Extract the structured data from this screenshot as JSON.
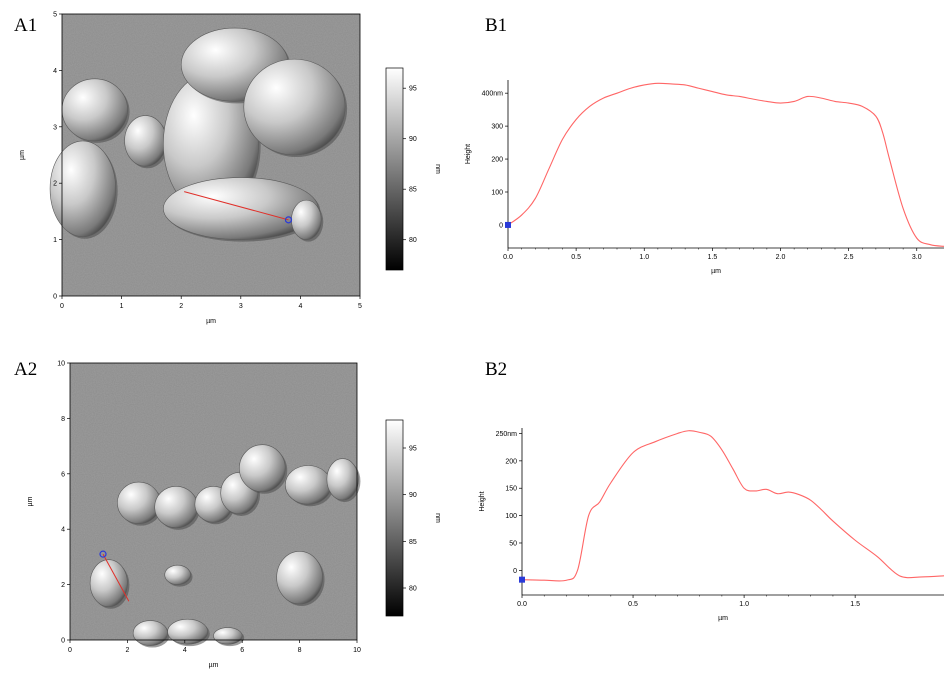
{
  "panels": {
    "a1": "A1",
    "b1": "B1",
    "a2": "A2",
    "b2": "B2"
  },
  "chart_data": [
    {
      "id": "A1",
      "type": "heatmap",
      "title": "",
      "xlabel": "µm",
      "ylabel": "µm",
      "xlim": [
        0,
        5
      ],
      "ylim": [
        0,
        5
      ],
      "xticks": [
        "0",
        "1",
        "2",
        "3",
        "4",
        "5"
      ],
      "yticks": [
        "0",
        "1",
        "2",
        "3",
        "4",
        "5"
      ],
      "colorbar": {
        "label": "nm",
        "range": [
          77,
          97
        ],
        "ticks": [
          "80",
          "85",
          "90",
          "95"
        ],
        "values": [
          80,
          85,
          90,
          95
        ]
      },
      "profile_line": {
        "from": [
          2.05,
          1.85
        ],
        "to": [
          3.8,
          1.35
        ],
        "color": "#e0302a",
        "marker_color": "#2a3ad8"
      },
      "blobs": [
        {
          "x": 0.55,
          "y": 3.3,
          "rx": 0.55,
          "ry": 0.55
        },
        {
          "x": 0.35,
          "y": 1.9,
          "rx": 0.55,
          "ry": 0.85
        },
        {
          "x": 1.4,
          "y": 2.75,
          "rx": 0.35,
          "ry": 0.45
        },
        {
          "x": 2.5,
          "y": 2.7,
          "rx": 0.8,
          "ry": 1.25
        },
        {
          "x": 3.0,
          "y": 1.55,
          "rx": 1.3,
          "ry": 0.55
        },
        {
          "x": 2.9,
          "y": 4.1,
          "rx": 0.9,
          "ry": 0.65
        },
        {
          "x": 3.9,
          "y": 3.35,
          "rx": 0.85,
          "ry": 0.85
        },
        {
          "x": 4.1,
          "y": 1.35,
          "rx": 0.25,
          "ry": 0.35
        }
      ]
    },
    {
      "id": "B1",
      "type": "line",
      "title": "",
      "xlabel": "µm",
      "ylabel": "Height",
      "xlim": [
        0,
        3.2
      ],
      "ylim": [
        -70,
        440
      ],
      "xticks": [
        0.0,
        0.5,
        1.0,
        1.5,
        2.0,
        2.5,
        3.0
      ],
      "xtick_labels": [
        "0.0",
        "0.5",
        "1.0",
        "1.5",
        "2.0",
        "2.5",
        "3.0"
      ],
      "yticks": [
        0,
        100,
        200,
        300,
        400
      ],
      "ytick_labels": [
        "0",
        "100",
        "200",
        "300",
        "400nm"
      ],
      "color": "#ff6666",
      "marker": {
        "x": 0.0,
        "y": 0,
        "color": "#2a3ad8"
      },
      "x": [
        0.0,
        0.1,
        0.2,
        0.3,
        0.4,
        0.5,
        0.6,
        0.7,
        0.8,
        0.9,
        1.0,
        1.1,
        1.2,
        1.3,
        1.4,
        1.5,
        1.6,
        1.7,
        1.8,
        1.9,
        2.0,
        2.1,
        2.2,
        2.3,
        2.4,
        2.5,
        2.6,
        2.7,
        2.75,
        2.8,
        2.9,
        3.0,
        3.1,
        3.2
      ],
      "y": [
        0,
        30,
        80,
        170,
        260,
        320,
        360,
        385,
        400,
        415,
        425,
        430,
        428,
        425,
        415,
        405,
        395,
        390,
        382,
        375,
        370,
        375,
        390,
        385,
        375,
        370,
        360,
        330,
        280,
        200,
        50,
        -40,
        -60,
        -65
      ]
    },
    {
      "id": "A2",
      "type": "heatmap",
      "title": "",
      "xlabel": "µm",
      "ylabel": "µm",
      "xlim": [
        0,
        10
      ],
      "ylim": [
        0,
        10
      ],
      "xticks": [
        "0",
        "2",
        "4",
        "6",
        "8",
        "10"
      ],
      "yticks": [
        "0",
        "2",
        "4",
        "6",
        "8",
        "10"
      ],
      "colorbar": {
        "label": "nm",
        "range": [
          77,
          98
        ],
        "ticks": [
          "80",
          "85",
          "90",
          "95"
        ],
        "values": [
          80,
          85,
          90,
          95
        ]
      },
      "profile_line": {
        "from": [
          1.15,
          3.1
        ],
        "to": [
          2.05,
          1.4
        ],
        "color": "#e0302a",
        "marker_color": "#2a3ad8"
      },
      "blobs": [
        {
          "x": 1.35,
          "y": 2.05,
          "rx": 0.65,
          "ry": 0.85
        },
        {
          "x": 3.75,
          "y": 2.35,
          "rx": 0.45,
          "ry": 0.35
        },
        {
          "x": 2.4,
          "y": 4.95,
          "rx": 0.75,
          "ry": 0.75
        },
        {
          "x": 3.7,
          "y": 4.8,
          "rx": 0.75,
          "ry": 0.75
        },
        {
          "x": 5.0,
          "y": 4.9,
          "rx": 0.65,
          "ry": 0.65
        },
        {
          "x": 5.9,
          "y": 5.3,
          "rx": 0.65,
          "ry": 0.75
        },
        {
          "x": 6.7,
          "y": 6.2,
          "rx": 0.8,
          "ry": 0.85
        },
        {
          "x": 8.3,
          "y": 5.6,
          "rx": 0.8,
          "ry": 0.7
        },
        {
          "x": 9.5,
          "y": 5.8,
          "rx": 0.55,
          "ry": 0.75
        },
        {
          "x": 8.0,
          "y": 2.25,
          "rx": 0.8,
          "ry": 0.95
        },
        {
          "x": 2.8,
          "y": 0.25,
          "rx": 0.6,
          "ry": 0.45
        },
        {
          "x": 4.1,
          "y": 0.3,
          "rx": 0.7,
          "ry": 0.45
        },
        {
          "x": 5.5,
          "y": 0.15,
          "rx": 0.5,
          "ry": 0.3
        }
      ]
    },
    {
      "id": "B2",
      "type": "line",
      "title": "",
      "xlabel": "µm",
      "ylabel": "Height",
      "xlim": [
        0,
        1.9
      ],
      "ylim": [
        -45,
        260
      ],
      "xticks": [
        0.0,
        0.5,
        1.0,
        1.5
      ],
      "xtick_labels": [
        "0.0",
        "0.5",
        "1.0",
        "1.5"
      ],
      "yticks": [
        0,
        50,
        100,
        150,
        200,
        250
      ],
      "ytick_labels": [
        "0",
        "50",
        "100",
        "150",
        "200",
        "250nm"
      ],
      "color": "#ff6666",
      "marker": {
        "x": 0.0,
        "y": -17,
        "color": "#2a3ad8"
      },
      "x": [
        0.0,
        0.1,
        0.2,
        0.25,
        0.3,
        0.35,
        0.4,
        0.5,
        0.6,
        0.7,
        0.75,
        0.8,
        0.85,
        0.9,
        0.95,
        1.0,
        1.05,
        1.1,
        1.15,
        1.2,
        1.25,
        1.3,
        1.35,
        1.4,
        1.5,
        1.6,
        1.7,
        1.8,
        1.9
      ],
      "y": [
        -17,
        -18,
        -18,
        0,
        100,
        125,
        160,
        215,
        235,
        250,
        255,
        252,
        245,
        220,
        185,
        150,
        145,
        148,
        140,
        143,
        138,
        128,
        110,
        90,
        55,
        25,
        -10,
        -12,
        -10
      ]
    }
  ]
}
